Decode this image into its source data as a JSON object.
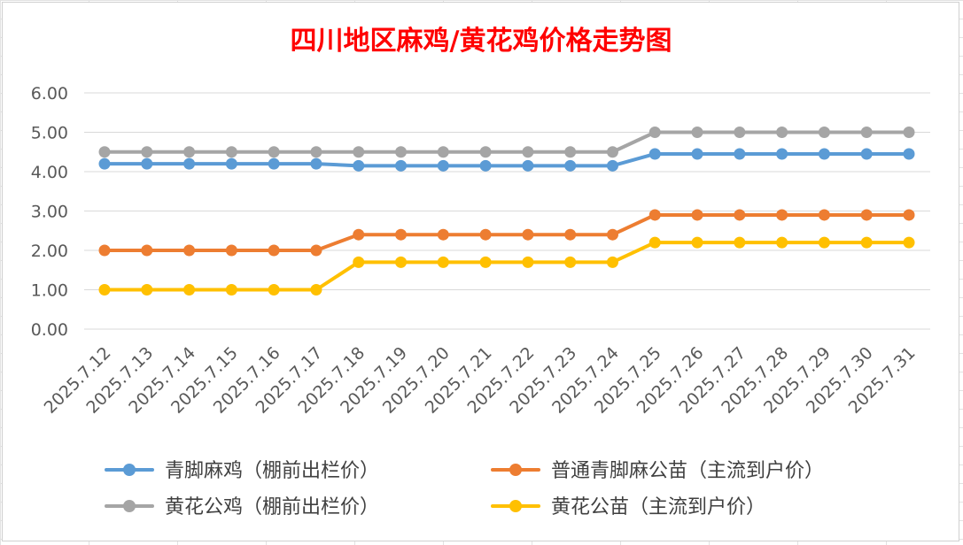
{
  "chart_data": {
    "type": "line",
    "title": "四川地区麻鸡/黄花鸡价格走势图",
    "title_color": "#ff0000",
    "xlabel": "",
    "ylabel": "",
    "ylim": [
      0,
      6
    ],
    "yticks": [
      "0.00",
      "1.00",
      "2.00",
      "3.00",
      "4.00",
      "5.00",
      "6.00"
    ],
    "grid": "horizontal",
    "legend_position": "bottom",
    "categories": [
      "2025.7.12",
      "2025.7.13",
      "2025.7.14",
      "2025.7.15",
      "2025.7.16",
      "2025.7.17",
      "2025.7.18",
      "2025.7.19",
      "2025.7.20",
      "2025.7.21",
      "2025.7.22",
      "2025.7.23",
      "2025.7.24",
      "2025.7.25",
      "2025.7.26",
      "2025.7.27",
      "2025.7.28",
      "2025.7.29",
      "2025.7.30",
      "2025.7.31"
    ],
    "series": [
      {
        "name": "青脚麻鸡（棚前出栏价）",
        "color": "#5b9bd5",
        "values": [
          4.2,
          4.2,
          4.2,
          4.2,
          4.2,
          4.2,
          4.15,
          4.15,
          4.15,
          4.15,
          4.15,
          4.15,
          4.15,
          4.45,
          4.45,
          4.45,
          4.45,
          4.45,
          4.45,
          4.45
        ]
      },
      {
        "name": "普通青脚麻公苗（主流到户价）",
        "color": "#ed7d31",
        "values": [
          2.0,
          2.0,
          2.0,
          2.0,
          2.0,
          2.0,
          2.4,
          2.4,
          2.4,
          2.4,
          2.4,
          2.4,
          2.4,
          2.9,
          2.9,
          2.9,
          2.9,
          2.9,
          2.9,
          2.9
        ]
      },
      {
        "name": "黄花公鸡（棚前出栏价）",
        "color": "#a5a5a5",
        "values": [
          4.5,
          4.5,
          4.5,
          4.5,
          4.5,
          4.5,
          4.5,
          4.5,
          4.5,
          4.5,
          4.5,
          4.5,
          4.5,
          5.0,
          5.0,
          5.0,
          5.0,
          5.0,
          5.0,
          5.0
        ]
      },
      {
        "name": "黄花公苗（主流到户价）",
        "color": "#ffc000",
        "values": [
          1.0,
          1.0,
          1.0,
          1.0,
          1.0,
          1.0,
          1.7,
          1.7,
          1.7,
          1.7,
          1.7,
          1.7,
          1.7,
          2.2,
          2.2,
          2.2,
          2.2,
          2.2,
          2.2,
          2.2
        ]
      }
    ]
  }
}
